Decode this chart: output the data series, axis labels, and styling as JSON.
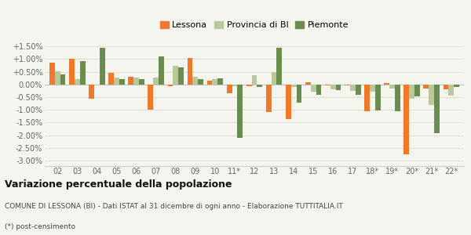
{
  "categories": [
    "02",
    "03",
    "04",
    "05",
    "06",
    "07",
    "08",
    "09",
    "10",
    "11*",
    "12",
    "13",
    "14",
    "15",
    "16",
    "17",
    "18*",
    "19*",
    "20*",
    "21*",
    "22*"
  ],
  "lessona": [
    0.85,
    1.0,
    -0.55,
    0.47,
    0.3,
    -1.0,
    -0.07,
    1.05,
    0.15,
    -0.35,
    -0.07,
    -1.1,
    -1.38,
    0.07,
    -0.05,
    -0.05,
    -1.05,
    0.05,
    -2.75,
    -0.15,
    -0.2
  ],
  "provincia_bi": [
    0.53,
    0.22,
    -0.05,
    0.27,
    0.28,
    0.28,
    0.72,
    0.3,
    0.22,
    -0.08,
    0.37,
    0.48,
    -0.1,
    -0.28,
    -0.18,
    -0.25,
    -0.28,
    -0.17,
    -0.57,
    -0.82,
    -0.45
  ],
  "piemonte": [
    0.4,
    0.92,
    1.43,
    0.2,
    0.22,
    1.1,
    0.68,
    0.22,
    0.25,
    -2.12,
    -0.1,
    1.45,
    -0.72,
    -0.42,
    -0.22,
    -0.42,
    -1.03,
    -1.05,
    -0.48,
    -1.92,
    -0.1
  ],
  "color_lessona": "#f07828",
  "color_provincia": "#b8c89a",
  "color_piemonte": "#6b8c50",
  "bg_color": "#f5f5f0",
  "grid_color": "#ddddcc",
  "ylim_min": -3.2,
  "ylim_max": 1.75,
  "ytick_vals": [
    1.5,
    1.0,
    0.5,
    0.0,
    -0.5,
    -1.0,
    -1.5,
    -2.0,
    -2.5,
    -3.0
  ],
  "title": "Variazione percentuale della popolazione",
  "subtitle": "COMUNE DI LESSONA (BI) - Dati ISTAT al 31 dicembre di ogni anno - Elaborazione TUTTITALIA.IT",
  "footnote": "(*) post-censimento",
  "bar_width": 0.27
}
